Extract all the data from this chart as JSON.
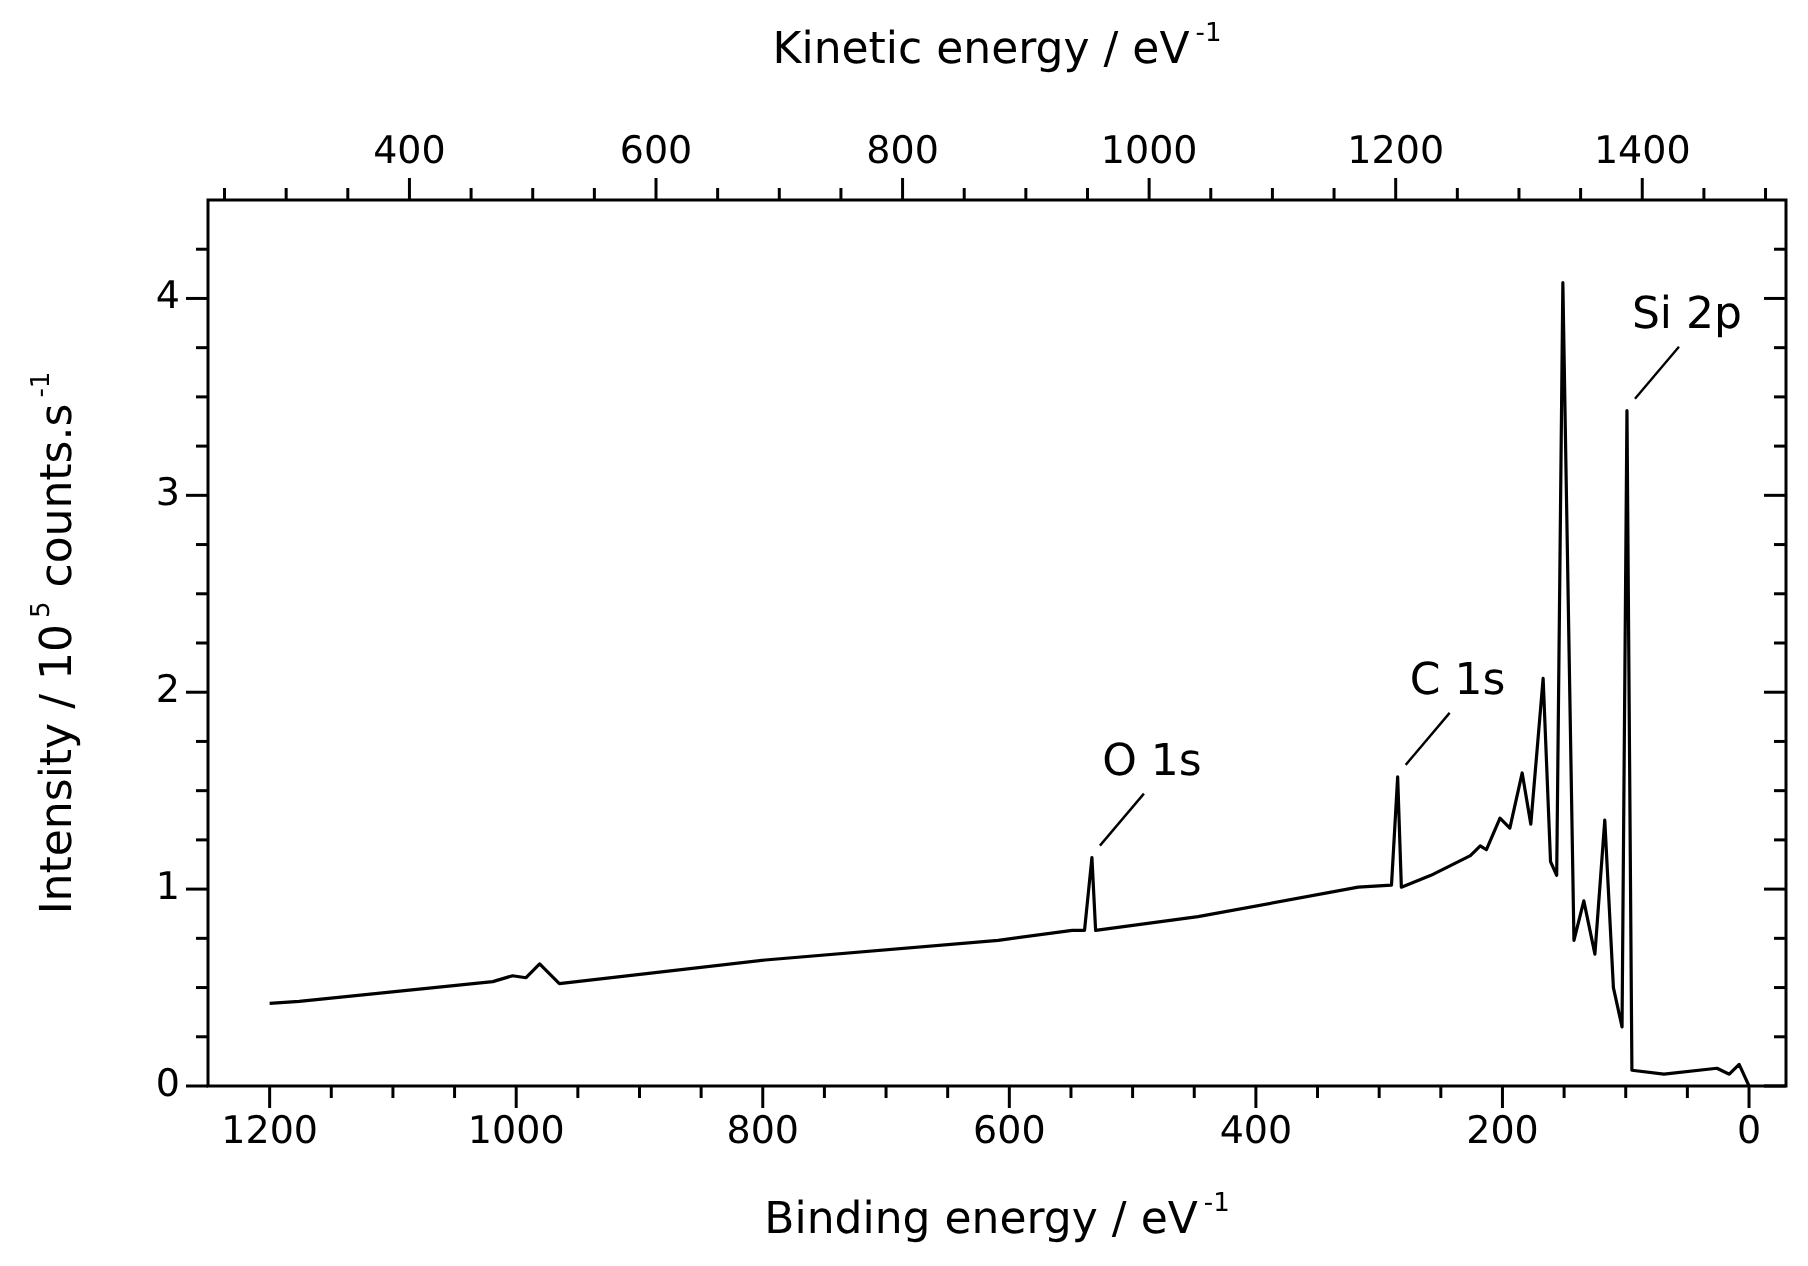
{
  "chart_data": {
    "type": "line",
    "xlabel": "Binding energy / eV$^{-1}$",
    "x2label": "Kinetic energy / eV$^{-1}$",
    "ylabel": "Intensity / 10$^{5}$ counts.s$^{-1}$",
    "x": [
      1200,
      1176,
      1019,
      1003,
      992,
      981,
      965,
      798,
      609,
      549,
      539,
      533,
      530,
      447,
      317,
      290,
      285,
      282,
      258,
      226,
      218,
      213,
      202,
      194,
      184,
      177,
      167,
      161,
      156,
      151,
      142,
      134,
      125,
      117,
      110,
      103,
      99,
      95,
      69,
      26,
      16,
      8,
      0
    ],
    "series": [
      {
        "color": "#000000",
        "values": [
          0.42,
          0.43,
          0.53,
          0.56,
          0.55,
          0.62,
          0.52,
          0.64,
          0.74,
          0.79,
          0.79,
          1.16,
          0.79,
          0.86,
          1.01,
          1.02,
          1.57,
          1.01,
          1.07,
          1.17,
          1.22,
          1.2,
          1.36,
          1.31,
          1.59,
          1.33,
          2.07,
          1.14,
          1.07,
          4.08,
          0.74,
          0.94,
          0.67,
          1.35,
          0.5,
          0.3,
          3.43,
          0.08,
          0.06,
          0.09,
          0.06,
          0.11,
          0
        ]
      }
    ],
    "xlim": [
      1250,
      -30
    ],
    "xticks": [
      1200,
      {
        "value": 1150,
        "label": null
      },
      1000,
      {
        "value": 1050,
        "label": null
      },
      {
        "value": 1100,
        "label": null
      },
      {
        "value": 950,
        "label": null
      },
      {
        "value": 900,
        "label": null
      },
      {
        "value": 850,
        "label": null
      },
      800,
      {
        "value": 750,
        "label": null
      },
      {
        "value": 700,
        "label": null
      },
      {
        "value": 650,
        "label": null
      },
      600,
      {
        "value": 550,
        "label": null
      },
      {
        "value": 500,
        "label": null
      },
      {
        "value": 450,
        "label": null
      },
      400,
      {
        "value": 350,
        "label": null
      },
      {
        "value": 300,
        "label": null
      },
      {
        "value": 250,
        "label": null
      },
      200,
      {
        "value": 150,
        "label": null
      },
      {
        "value": 100,
        "label": null
      },
      {
        "value": 50,
        "label": null
      },
      0
    ],
    "x2lim": [
      236.6,
      1516.6
    ],
    "x2ticks": [
      {
        "value": 250,
        "label": null
      },
      {
        "value": 300,
        "label": null
      },
      {
        "value": 350,
        "label": null
      },
      400,
      {
        "value": 450,
        "label": null
      },
      {
        "value": 500,
        "label": null
      },
      {
        "value": 550,
        "label": null
      },
      600,
      {
        "value": 650,
        "label": null
      },
      {
        "value": 700,
        "label": null
      },
      {
        "value": 750,
        "label": null
      },
      800,
      {
        "value": 850,
        "label": null
      },
      {
        "value": 900,
        "label": null
      },
      {
        "value": 950,
        "label": null
      },
      1000,
      {
        "value": 1050,
        "label": null
      },
      {
        "value": 1100,
        "label": null
      },
      {
        "value": 1150,
        "label": null
      },
      1200,
      {
        "value": 1250,
        "label": null
      },
      {
        "value": 1300,
        "label": null
      },
      {
        "value": 1350,
        "label": null
      },
      1400,
      {
        "value": 1450,
        "label": null
      },
      {
        "value": 1500,
        "label": null
      }
    ],
    "ylim": [
      0,
      4.5
    ],
    "yticks": [
      0,
      {
        "value": 0.25,
        "label": null
      },
      {
        "value": 0.5,
        "label": null
      },
      {
        "value": 0.75,
        "label": null
      },
      1,
      {
        "value": 1.25,
        "label": null
      },
      {
        "value": 1.5,
        "label": null
      },
      {
        "value": 1.75,
        "label": null
      },
      2,
      {
        "value": 2.25,
        "label": null
      },
      {
        "value": 2.5,
        "label": null
      },
      {
        "value": 2.75,
        "label": null
      },
      3,
      {
        "value": 3.25,
        "label": null
      },
      {
        "value": 3.5,
        "label": null
      },
      {
        "value": 3.75,
        "label": null
      },
      4,
      {
        "value": 4.25,
        "label": null
      }
    ],
    "annotations": [
      {
        "text": "O 1s",
        "x": 533,
        "y": 1.16
      },
      {
        "text": "C 1s",
        "x": 285,
        "y": 1.57
      },
      {
        "text": "Si 2p",
        "x": 99,
        "y": 3.43
      }
    ],
    "legend": false,
    "grid": false
  }
}
